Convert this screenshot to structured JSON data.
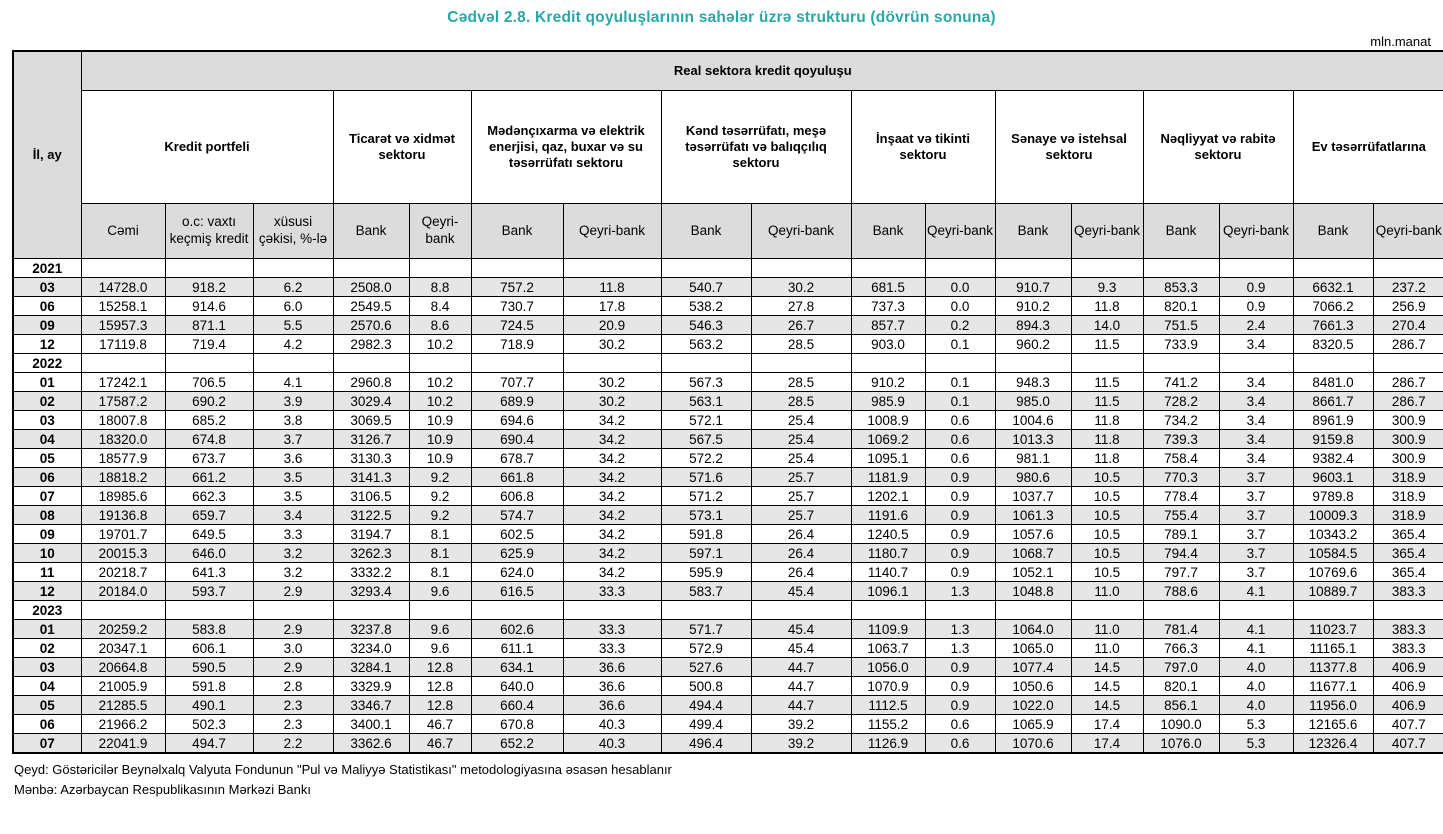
{
  "title": "Cədvəl 2.8. Kredit qoyuluşlarının sahələr üzrə strukturu (dövrün sonuna)",
  "unit_label": "mln.manat",
  "colors": {
    "title_accent": "#2AA8A8",
    "header_bg": "#DCDCDC",
    "row_band_bg": "#E6E6E6"
  },
  "table": {
    "col_year_month": "İl, ay",
    "top_header": "Real sektora kredit qoyuluşu",
    "groups": [
      {
        "label": "Kredit portfeli",
        "cols": [
          "Cəmi",
          "o.c: vaxtı keçmiş kredit",
          "xüsusi çəkisi, %-lə"
        ]
      },
      {
        "label": "Ticarət və xidmət sektoru",
        "cols": [
          "Bank",
          "Qeyri-bank"
        ]
      },
      {
        "label": "Mədənçıxarma və elektrik enerjisi, qaz, buxar və su təsərrüfatı sektoru",
        "cols": [
          "Bank",
          "Qeyri-bank"
        ]
      },
      {
        "label": "Kənd təsərrüfatı, meşə təsərrüfatı və balıqçılıq sektoru",
        "cols": [
          "Bank",
          "Qeyri-bank"
        ]
      },
      {
        "label": "İnşaat və tikinti sektoru",
        "cols": [
          "Bank",
          "Qeyri-bank"
        ]
      },
      {
        "label": "Sənaye və istehsal sektoru",
        "cols": [
          "Bank",
          "Qeyri-bank"
        ]
      },
      {
        "label": "Nəqliyyat və rabitə sektoru",
        "cols": [
          "Bank",
          "Qeyri-bank"
        ]
      },
      {
        "label": "Ev təsərrüfatlarına",
        "cols": [
          "Bank",
          "Qeyri-bank"
        ]
      }
    ],
    "sections": [
      {
        "year": "2021",
        "rows": [
          {
            "month": "03",
            "shaded": true,
            "values": [
              "14728.0",
              "918.2",
              "6.2",
              "2508.0",
              "8.8",
              "757.2",
              "11.8",
              "540.7",
              "30.2",
              "681.5",
              "0.0",
              "910.7",
              "9.3",
              "853.3",
              "0.9",
              "6632.1",
              "237.2"
            ]
          },
          {
            "month": "06",
            "shaded": false,
            "values": [
              "15258.1",
              "914.6",
              "6.0",
              "2549.5",
              "8.4",
              "730.7",
              "17.8",
              "538.2",
              "27.8",
              "737.3",
              "0.0",
              "910.2",
              "11.8",
              "820.1",
              "0.9",
              "7066.2",
              "256.9"
            ]
          },
          {
            "month": "09",
            "shaded": true,
            "values": [
              "15957.3",
              "871.1",
              "5.5",
              "2570.6",
              "8.6",
              "724.5",
              "20.9",
              "546.3",
              "26.7",
              "857.7",
              "0.2",
              "894.3",
              "14.0",
              "751.5",
              "2.4",
              "7661.3",
              "270.4"
            ]
          },
          {
            "month": "12",
            "shaded": false,
            "values": [
              "17119.8",
              "719.4",
              "4.2",
              "2982.3",
              "10.2",
              "718.9",
              "30.2",
              "563.2",
              "28.5",
              "903.0",
              "0.1",
              "960.2",
              "11.5",
              "733.9",
              "3.4",
              "8320.5",
              "286.7"
            ]
          }
        ]
      },
      {
        "year": "2022",
        "rows": [
          {
            "month": "01",
            "shaded": false,
            "values": [
              "17242.1",
              "706.5",
              "4.1",
              "2960.8",
              "10.2",
              "707.7",
              "30.2",
              "567.3",
              "28.5",
              "910.2",
              "0.1",
              "948.3",
              "11.5",
              "741.2",
              "3.4",
              "8481.0",
              "286.7"
            ]
          },
          {
            "month": "02",
            "shaded": true,
            "values": [
              "17587.2",
              "690.2",
              "3.9",
              "3029.4",
              "10.2",
              "689.9",
              "30.2",
              "563.1",
              "28.5",
              "985.9",
              "0.1",
              "985.0",
              "11.5",
              "728.2",
              "3.4",
              "8661.7",
              "286.7"
            ]
          },
          {
            "month": "03",
            "shaded": false,
            "values": [
              "18007.8",
              "685.2",
              "3.8",
              "3069.5",
              "10.9",
              "694.6",
              "34.2",
              "572.1",
              "25.4",
              "1008.9",
              "0.6",
              "1004.6",
              "11.8",
              "734.2",
              "3.4",
              "8961.9",
              "300.9"
            ]
          },
          {
            "month": "04",
            "shaded": true,
            "values": [
              "18320.0",
              "674.8",
              "3.7",
              "3126.7",
              "10.9",
              "690.4",
              "34.2",
              "567.5",
              "25.4",
              "1069.2",
              "0.6",
              "1013.3",
              "11.8",
              "739.3",
              "3.4",
              "9159.8",
              "300.9"
            ]
          },
          {
            "month": "05",
            "shaded": false,
            "values": [
              "18577.9",
              "673.7",
              "3.6",
              "3130.3",
              "10.9",
              "678.7",
              "34.2",
              "572.2",
              "25.4",
              "1095.1",
              "0.6",
              "981.1",
              "11.8",
              "758.4",
              "3.4",
              "9382.4",
              "300.9"
            ]
          },
          {
            "month": "06",
            "shaded": true,
            "values": [
              "18818.2",
              "661.2",
              "3.5",
              "3141.3",
              "9.2",
              "661.8",
              "34.2",
              "571.6",
              "25.7",
              "1181.9",
              "0.9",
              "980.6",
              "10.5",
              "770.3",
              "3.7",
              "9603.1",
              "318.9"
            ]
          },
          {
            "month": "07",
            "shaded": false,
            "values": [
              "18985.6",
              "662.3",
              "3.5",
              "3106.5",
              "9.2",
              "606.8",
              "34.2",
              "571.2",
              "25.7",
              "1202.1",
              "0.9",
              "1037.7",
              "10.5",
              "778.4",
              "3.7",
              "9789.8",
              "318.9"
            ]
          },
          {
            "month": "08",
            "shaded": true,
            "values": [
              "19136.8",
              "659.7",
              "3.4",
              "3122.5",
              "9.2",
              "574.7",
              "34.2",
              "573.1",
              "25.7",
              "1191.6",
              "0.9",
              "1061.3",
              "10.5",
              "755.4",
              "3.7",
              "10009.3",
              "318.9"
            ]
          },
          {
            "month": "09",
            "shaded": false,
            "values": [
              "19701.7",
              "649.5",
              "3.3",
              "3194.7",
              "8.1",
              "602.5",
              "34.2",
              "591.8",
              "26.4",
              "1240.5",
              "0.9",
              "1057.6",
              "10.5",
              "789.1",
              "3.7",
              "10343.2",
              "365.4"
            ]
          },
          {
            "month": "10",
            "shaded": true,
            "values": [
              "20015.3",
              "646.0",
              "3.2",
              "3262.3",
              "8.1",
              "625.9",
              "34.2",
              "597.1",
              "26.4",
              "1180.7",
              "0.9",
              "1068.7",
              "10.5",
              "794.4",
              "3.7",
              "10584.5",
              "365.4"
            ]
          },
          {
            "month": "11",
            "shaded": false,
            "values": [
              "20218.7",
              "641.3",
              "3.2",
              "3332.2",
              "8.1",
              "624.0",
              "34.2",
              "595.9",
              "26.4",
              "1140.7",
              "0.9",
              "1052.1",
              "10.5",
              "797.7",
              "3.7",
              "10769.6",
              "365.4"
            ]
          },
          {
            "month": "12",
            "shaded": true,
            "values": [
              "20184.0",
              "593.7",
              "2.9",
              "3293.4",
              "9.6",
              "616.5",
              "33.3",
              "583.7",
              "45.4",
              "1096.1",
              "1.3",
              "1048.8",
              "11.0",
              "788.6",
              "4.1",
              "10889.7",
              "383.3"
            ]
          }
        ]
      },
      {
        "year": "2023",
        "rows": [
          {
            "month": "01",
            "shaded": true,
            "values": [
              "20259.2",
              "583.8",
              "2.9",
              "3237.8",
              "9.6",
              "602.6",
              "33.3",
              "571.7",
              "45.4",
              "1109.9",
              "1.3",
              "1064.0",
              "11.0",
              "781.4",
              "4.1",
              "11023.7",
              "383.3"
            ]
          },
          {
            "month": "02",
            "shaded": false,
            "values": [
              "20347.1",
              "606.1",
              "3.0",
              "3234.0",
              "9.6",
              "611.1",
              "33.3",
              "572.9",
              "45.4",
              "1063.7",
              "1.3",
              "1065.0",
              "11.0",
              "766.3",
              "4.1",
              "11165.1",
              "383.3"
            ]
          },
          {
            "month": "03",
            "shaded": true,
            "values": [
              "20664.8",
              "590.5",
              "2.9",
              "3284.1",
              "12.8",
              "634.1",
              "36.6",
              "527.6",
              "44.7",
              "1056.0",
              "0.9",
              "1077.4",
              "14.5",
              "797.0",
              "4.0",
              "11377.8",
              "406.9"
            ]
          },
          {
            "month": "04",
            "shaded": false,
            "values": [
              "21005.9",
              "591.8",
              "2.8",
              "3329.9",
              "12.8",
              "640.0",
              "36.6",
              "500.8",
              "44.7",
              "1070.9",
              "0.9",
              "1050.6",
              "14.5",
              "820.1",
              "4.0",
              "11677.1",
              "406.9"
            ]
          },
          {
            "month": "05",
            "shaded": true,
            "values": [
              "21285.5",
              "490.1",
              "2.3",
              "3346.7",
              "12.8",
              "660.4",
              "36.6",
              "494.4",
              "44.7",
              "1112.5",
              "0.9",
              "1022.0",
              "14.5",
              "856.1",
              "4.0",
              "11956.0",
              "406.9"
            ]
          },
          {
            "month": "06",
            "shaded": false,
            "values": [
              "21966.2",
              "502.3",
              "2.3",
              "3400.1",
              "46.7",
              "670.8",
              "40.3",
              "499.4",
              "39.2",
              "1155.2",
              "0.6",
              "1065.9",
              "17.4",
              "1090.0",
              "5.3",
              "12165.6",
              "407.7"
            ]
          },
          {
            "month": "07",
            "shaded": true,
            "values": [
              "22041.9",
              "494.7",
              "2.2",
              "3362.6",
              "46.7",
              "652.2",
              "40.3",
              "496.4",
              "39.2",
              "1126.9",
              "0.6",
              "1070.6",
              "17.4",
              "1076.0",
              "5.3",
              "12326.4",
              "407.7"
            ]
          }
        ]
      }
    ]
  },
  "footer": {
    "note": "Qeyd: Göstəricilər Beynəlxalq Valyuta Fondunun \"Pul və Maliyyə Statistikası\" metodologiyasına əsasən hesablanır",
    "source": "Mənbə: Azərbaycan Respublikasının Mərkəzi Bankı"
  }
}
